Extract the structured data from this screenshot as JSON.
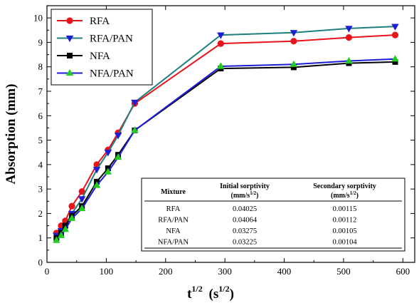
{
  "chart_data": {
    "type": "line",
    "xlabel_base": "t",
    "xlabel_sup1": "1/2",
    "xlabel_unit": "(s",
    "xlabel_sup2": "1/2",
    "xlabel_close": ")",
    "ylabel": "Absorption (mm)",
    "xlim": [
      0,
      620
    ],
    "ylim": [
      0,
      10.5
    ],
    "xticks": [
      0,
      100,
      200,
      300,
      400,
      500,
      600
    ],
    "yticks": [
      0,
      1,
      2,
      3,
      4,
      5,
      6,
      7,
      8,
      9,
      10
    ],
    "legend_position": "top-left",
    "series": [
      {
        "name": "RFA",
        "color": "#e8141c",
        "marker": "circle",
        "x": [
          16,
          24,
          31,
          42,
          59,
          84,
          103,
          120,
          148,
          293,
          416,
          509,
          587
        ],
        "y": [
          1.2,
          1.5,
          1.7,
          2.3,
          2.9,
          4.0,
          4.6,
          5.3,
          6.5,
          8.95,
          9.05,
          9.2,
          9.3
        ]
      },
      {
        "name": "RFA/PAN",
        "color": "#1d1dd6",
        "line_color": "#1f7f7f",
        "marker": "triangle-down",
        "x": [
          16,
          24,
          31,
          42,
          59,
          84,
          103,
          120,
          148,
          293,
          416,
          509,
          587
        ],
        "y": [
          1.1,
          1.3,
          1.5,
          2.0,
          2.6,
          3.8,
          4.5,
          5.2,
          6.55,
          9.3,
          9.4,
          9.57,
          9.65
        ]
      },
      {
        "name": "NFA",
        "color": "#000000",
        "marker": "square",
        "x": [
          16,
          24,
          31,
          42,
          59,
          84,
          103,
          120,
          148,
          293,
          416,
          509,
          587
        ],
        "y": [
          1.0,
          1.2,
          1.5,
          1.9,
          2.3,
          3.3,
          3.85,
          4.4,
          5.4,
          7.93,
          7.98,
          8.15,
          8.2
        ]
      },
      {
        "name": "NFA/PAN",
        "color": "#22cc22",
        "line_color": "#1d1dd6",
        "marker": "triangle-up",
        "x": [
          16,
          24,
          31,
          42,
          59,
          84,
          103,
          120,
          148,
          293,
          416,
          509,
          587
        ],
        "y": [
          0.9,
          1.1,
          1.35,
          1.8,
          2.2,
          3.15,
          3.7,
          4.3,
          5.4,
          8.02,
          8.1,
          8.24,
          8.32
        ]
      }
    ],
    "table": {
      "headers": [
        {
          "main": "Mixture",
          "sub": ""
        },
        {
          "main": "Initial sorptivity",
          "sub": "(mm/s"
        },
        {
          "main": "Secondary sorptivity",
          "sub": "(mm/s"
        }
      ],
      "unit_sup": "1/2",
      "unit_close": ")",
      "rows": [
        [
          "RFA",
          "0.04025",
          "0.00115"
        ],
        [
          "RFA/PAN",
          "0.04064",
          "0.00112"
        ],
        [
          "NFA",
          "0.03275",
          "0.00105"
        ],
        [
          "NFA/PAN",
          "0.03225",
          "0.00104"
        ]
      ]
    }
  }
}
